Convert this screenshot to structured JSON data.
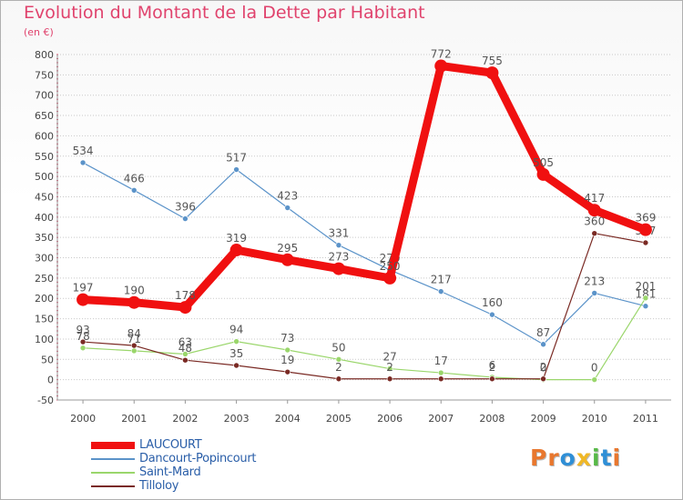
{
  "header": {
    "title": "Evolution du Montant de la Dette par Habitant",
    "unit": "(en €)"
  },
  "logo": {
    "text": "Proxiti",
    "letters": [
      {
        "ch": "P",
        "color": "#e8772e"
      },
      {
        "ch": "r",
        "color": "#e8772e"
      },
      {
        "ch": "o",
        "color": "#2f8fd6"
      },
      {
        "ch": "x",
        "color": "#f0b826"
      },
      {
        "ch": "i",
        "color": "#57b947"
      },
      {
        "ch": "t",
        "color": "#2f8fd6"
      },
      {
        "ch": "i",
        "color": "#e8772e"
      }
    ]
  },
  "chart_data": {
    "type": "line",
    "title": "Evolution du Montant de la Dette par Habitant",
    "ylabel": "(en €)",
    "xlabel": "",
    "ylim": [
      -50,
      800
    ],
    "y_ticks": [
      -50,
      0,
      50,
      100,
      150,
      200,
      250,
      300,
      350,
      400,
      450,
      500,
      550,
      600,
      650,
      700,
      750,
      800
    ],
    "categories": [
      "2000",
      "2001",
      "2002",
      "2003",
      "2004",
      "2005",
      "2006",
      "2007",
      "2008",
      "2009",
      "2010",
      "2011"
    ],
    "grid": "horizontal dotted",
    "legend_position": "bottom-left",
    "series": [
      {
        "name": "Dancourt-Popincourt",
        "color": "#5b93c9",
        "values": [
          534,
          466,
          396,
          517,
          423,
          331,
          270,
          217,
          160,
          87,
          213,
          181
        ],
        "labels": [
          "534",
          "466",
          "396",
          "517",
          "423",
          "331",
          "270",
          "217",
          "160",
          "87",
          "213",
          "181"
        ]
      },
      {
        "name": "Saint-Mard",
        "color": "#9ad66b",
        "values": [
          78,
          71,
          63,
          94,
          73,
          50,
          27,
          17,
          6,
          0,
          0,
          201
        ],
        "labels": [
          "78",
          "71",
          "63",
          "94",
          "73",
          "50",
          "27",
          "17",
          "6",
          "0",
          "0",
          "201"
        ]
      },
      {
        "name": "Tilloloy",
        "color": "#7a2a24",
        "values": [
          93,
          84,
          48,
          35,
          19,
          2,
          2,
          2,
          2,
          2,
          360,
          337
        ],
        "labels": [
          "93",
          "84",
          "48",
          "35",
          "19",
          "2",
          "2",
          "",
          "2",
          "2",
          "360",
          "337"
        ]
      },
      {
        "name": "LAUCOURT",
        "color": "#f01010",
        "values": [
          197,
          190,
          178,
          319,
          295,
          273,
          250,
          772,
          755,
          505,
          417,
          369
        ],
        "labels": [
          "197",
          "190",
          "178",
          "319",
          "295",
          "273",
          "250",
          "772",
          "755",
          "505",
          "417",
          "369"
        ]
      }
    ],
    "legend_order": [
      "LAUCOURT",
      "Dancourt-Popincourt",
      "Saint-Mard",
      "Tilloloy"
    ]
  }
}
